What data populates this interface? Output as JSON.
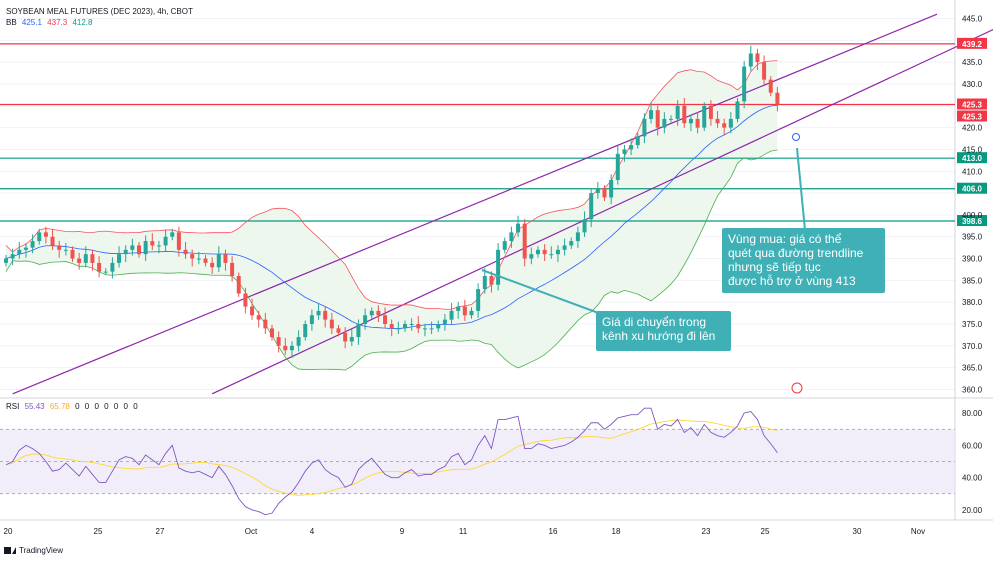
{
  "header": {
    "title": "SOYBEAN MEAL FUTURES (DEC 2023), 4h, CBOT",
    "bb_label": "BB",
    "bb_values": [
      "425.1",
      "437.3",
      "412.8"
    ],
    "rsi_label": "RSI",
    "rsi_values": [
      "55.43",
      "65.78",
      "0",
      "0",
      "0",
      "0",
      "0",
      "0",
      "0"
    ]
  },
  "colors": {
    "up": "#26a69a",
    "down": "#ef5350",
    "bb_basis": "#2962ff",
    "bb_band": "#f7525f",
    "bb_lower": "#4caf50",
    "bb_fill": "#e8f5e9",
    "channel": "#8e24aa",
    "red_level": "#f23645",
    "green_level": "#089981",
    "callout": "#3fb0b6",
    "rsi_line": "#7e57c2",
    "rsi_ma": "#fdd835",
    "rsi_bg": "#ede7f6"
  },
  "chart_data": {
    "type": "candlestick",
    "price_axis_ticks": [
      445.0,
      440.0,
      435.0,
      430.0,
      425.0,
      420.0,
      415.0,
      410.0,
      405.0,
      400.0,
      395.0,
      390.0,
      385.0,
      380.0,
      375.0,
      370.0,
      365.0,
      360.0
    ],
    "price_range": [
      358.5,
      446.5
    ],
    "date_axis_labels": [
      "20",
      "25",
      "27",
      "Oct",
      "4",
      "9",
      "11",
      "16",
      "18",
      "23",
      "25",
      "30",
      "Nov"
    ],
    "horizontal_levels": [
      {
        "value": 439.2,
        "label": "439.2",
        "color": "red"
      },
      {
        "value": 425.3,
        "label": "425.3",
        "color": "red"
      },
      {
        "value": 413.0,
        "label": "413.0",
        "color": "green"
      },
      {
        "value": 406.0,
        "label": "406.0",
        "color": "green"
      },
      {
        "value": 398.6,
        "label": "398.6",
        "color": "green"
      }
    ],
    "extra_price_label": "425.3",
    "bollinger_bands_last": {
      "basis": 425.1,
      "upper": 437.3,
      "lower": 412.8
    },
    "candles_close": [
      390,
      391,
      392,
      392.5,
      394,
      396,
      395,
      393,
      392,
      392,
      390,
      389,
      391,
      389,
      387,
      387,
      389,
      391,
      392,
      393,
      391,
      394,
      393,
      393,
      395,
      396,
      392,
      391,
      390,
      390,
      389,
      388,
      391,
      389,
      386,
      382,
      379,
      377,
      376,
      374,
      372,
      370,
      369,
      370,
      372,
      375,
      377,
      378,
      376,
      374,
      373,
      371,
      372,
      375,
      377,
      378,
      377,
      375,
      374,
      374,
      375,
      375,
      374,
      374,
      374,
      375,
      376,
      378,
      379,
      377,
      378,
      383,
      386,
      384,
      392,
      394,
      396,
      398,
      390,
      391,
      392,
      391,
      391,
      392,
      393,
      394,
      396,
      399,
      405,
      406,
      404,
      408,
      414,
      415,
      416,
      418,
      422,
      424,
      420,
      422,
      422,
      425,
      421,
      422,
      420,
      425,
      422,
      421,
      420,
      422,
      426,
      434,
      437,
      435,
      431,
      428,
      425.3
    ],
    "channel": {
      "upper_line": [
        [
          1,
          359
        ],
        [
          140,
          446
        ]
      ],
      "lower_line": [
        [
          31,
          359
        ],
        [
          152,
          445
        ]
      ],
      "unit": "candle index / price"
    },
    "rsi": {
      "axis_ticks": [
        80.0,
        60.0,
        40.0,
        20.0
      ],
      "range": [
        15,
        85
      ],
      "overbought": 70,
      "oversold": 30,
      "middle": 50,
      "values": [
        48,
        50,
        57,
        60,
        58,
        55,
        50,
        44,
        45,
        49,
        45,
        41,
        47,
        42,
        37,
        37,
        44,
        51,
        53,
        52,
        48,
        54,
        51,
        48,
        55,
        60,
        46,
        44,
        43,
        44,
        42,
        40,
        47,
        42,
        35,
        27,
        22,
        20,
        19,
        17,
        18,
        24,
        28,
        31,
        37,
        44,
        49,
        51,
        45,
        42,
        40,
        34,
        36,
        45,
        49,
        52,
        47,
        42,
        40,
        40,
        43,
        45,
        41,
        42,
        42,
        45,
        47,
        53,
        55,
        48,
        51,
        60,
        66,
        58,
        76,
        76,
        77,
        78,
        58,
        58,
        61,
        60,
        58,
        59,
        60,
        62,
        65,
        69,
        74,
        74,
        70,
        73,
        77,
        78,
        79,
        79,
        83,
        83,
        70,
        73,
        72,
        76,
        68,
        71,
        66,
        73,
        68,
        66,
        65,
        68,
        72,
        80,
        81,
        76,
        66,
        61,
        55.43
      ],
      "ma_values_last": 65.78
    }
  },
  "annotations": {
    "channel_note": "Giá di chuyển trong\nkênh xu hướng đi lên",
    "buy_zone_note": "Vùng mua: giá có thể\nquét qua đường trendline\nnhưng sẽ tiếp tục\nđược hỗ trợ ở vùng 413"
  },
  "footer": {
    "brand": "TradingView"
  }
}
